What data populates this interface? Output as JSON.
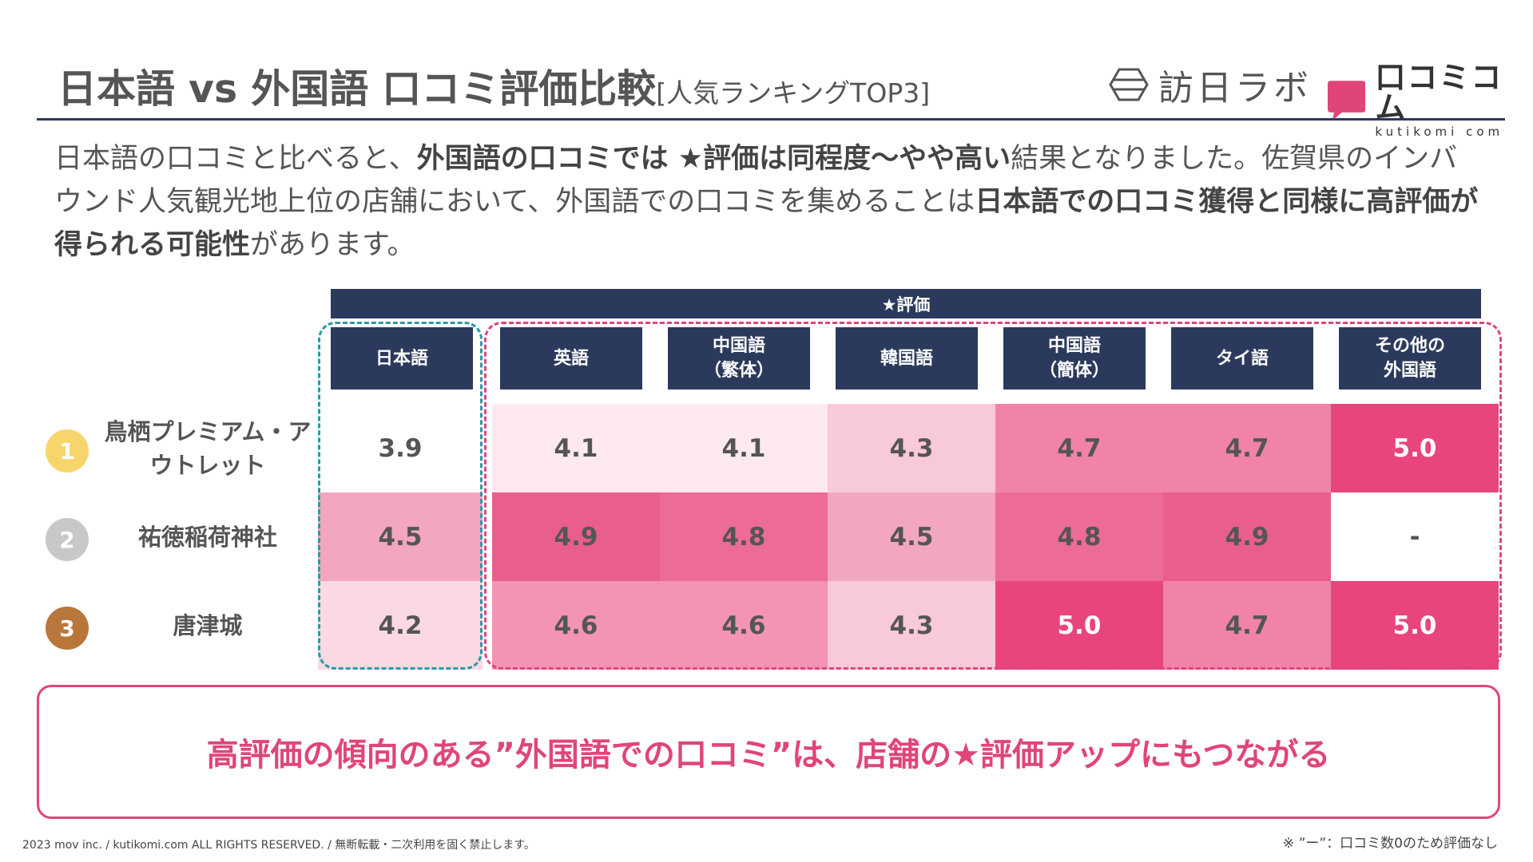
{
  "header": {
    "title": "日本語 vs 外国語 口コミ評価比較",
    "subtitle": "[人気ランキングTOP3]",
    "logo_hounichi": "訪日ラボ",
    "logo_kutikomi": "口コミコム",
    "logo_kutikomi_sub": "kutikomi com"
  },
  "lead": {
    "p1": "日本語の口コミと比べると、",
    "b1": "外国語の口コミでは ★評価は同程度〜やや高い",
    "p2": "結果となりました。佐賀県のインバウンド人気観光地上位の店舗において、外国語での口コミを集めることは",
    "b2": "日本語での口コミ獲得と同様に高評価が得られる可能性",
    "p3": "があります。"
  },
  "table": {
    "group_header": "★評価",
    "columns": [
      "日本語",
      "英語",
      "中国語\n（繁体）",
      "韓国語",
      "中国語\n（簡体）",
      "タイ語",
      "その他の\n外国語"
    ],
    "rows": [
      {
        "rank": "1",
        "name": "鳥栖プレミアム・アウトレット",
        "values": [
          "3.9",
          "4.1",
          "4.1",
          "4.3",
          "4.7",
          "4.7",
          "5.0"
        ]
      },
      {
        "rank": "2",
        "name": "祐徳稲荷神社",
        "values": [
          "4.5",
          "4.9",
          "4.8",
          "4.5",
          "4.8",
          "4.9",
          "-"
        ]
      },
      {
        "rank": "3",
        "name": "唐津城",
        "values": [
          "4.2",
          "4.6",
          "4.6",
          "4.3",
          "5.0",
          "4.7",
          "5.0"
        ]
      }
    ],
    "rank_colors": [
      "#f8d56b",
      "#c8c8c8",
      "#b8763a"
    ]
  },
  "conclusion": "高評価の傾向のある”外国語での口コミ”は、店舗の★評価アップにもつながる",
  "footer": {
    "copyright": "2023 mov inc. / kutikomi.com ALL RIGHTS RESERVED. / 無断転載・二次利用を固く禁止します。",
    "note": "※ ”ー”：口コミ数0のため評価なし"
  },
  "colors": {
    "navy": "#2b3a5c",
    "accent_pink": "#e0457a",
    "teal": "#2a9aa8"
  }
}
